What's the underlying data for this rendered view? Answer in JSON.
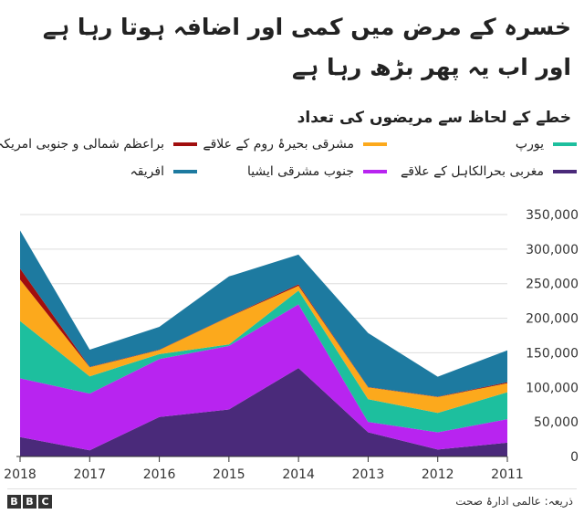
{
  "header": {
    "title": "خسرہ کے مرض میں کمی اور اضافہ ہوتا رہا ہے اور اب یہ پھر بڑھ رہا ہے"
  },
  "chart_data": {
    "type": "area",
    "stacked": true,
    "title": "",
    "subtitle": "خطے کے لحاظ سے مریضوں کی تعداد",
    "xlabel": "",
    "ylabel": "",
    "x": [
      "2018",
      "2017",
      "2016",
      "2015",
      "2014",
      "2013",
      "2012",
      "2011"
    ],
    "x_direction": "right-to-left",
    "ylim": [
      0,
      350000
    ],
    "yticks": [
      "0",
      "50,000",
      "100,000",
      "150,000",
      "200,000",
      "250,000",
      "300,000",
      "350,000"
    ],
    "ytick_values": [
      0,
      50000,
      100000,
      150000,
      200000,
      250000,
      300000,
      350000
    ],
    "y_axis_position": "right",
    "grid": true,
    "legend_position": "top",
    "series": [
      {
        "name": "مغربی بحرالکاہل کے علاقے",
        "color": "#4a2a7a",
        "values": [
          28000,
          9000,
          57000,
          68000,
          128000,
          35000,
          10000,
          20000
        ]
      },
      {
        "name": "جنوب مشرقی ایشیا",
        "color": "#b824f0",
        "values": [
          85000,
          82000,
          84000,
          92000,
          92000,
          15000,
          25000,
          34000
        ]
      },
      {
        "name": "یورپ",
        "color": "#1dbf9e",
        "values": [
          83000,
          25000,
          7000,
          2000,
          20000,
          33000,
          28000,
          39000
        ]
      },
      {
        "name": "مشرقی بحیرۂ روم کے علاقے",
        "color": "#fca91c",
        "values": [
          60000,
          13000,
          6000,
          40000,
          7000,
          17000,
          23000,
          13000
        ]
      },
      {
        "name": "براعظم شمالی و جنوبی امریکہ",
        "color": "#a10e0e",
        "values": [
          16000,
          500,
          500,
          500,
          2000,
          500,
          500,
          1500
        ]
      },
      {
        "name": "افریقہ",
        "color": "#1d7aa0",
        "values": [
          55000,
          25000,
          33000,
          58000,
          43000,
          78000,
          29000,
          46000
        ]
      }
    ]
  },
  "footer": {
    "brand_letters": [
      "B",
      "B",
      "C"
    ],
    "source": "ذریعہ: عالمی ادارۂ صحت"
  }
}
